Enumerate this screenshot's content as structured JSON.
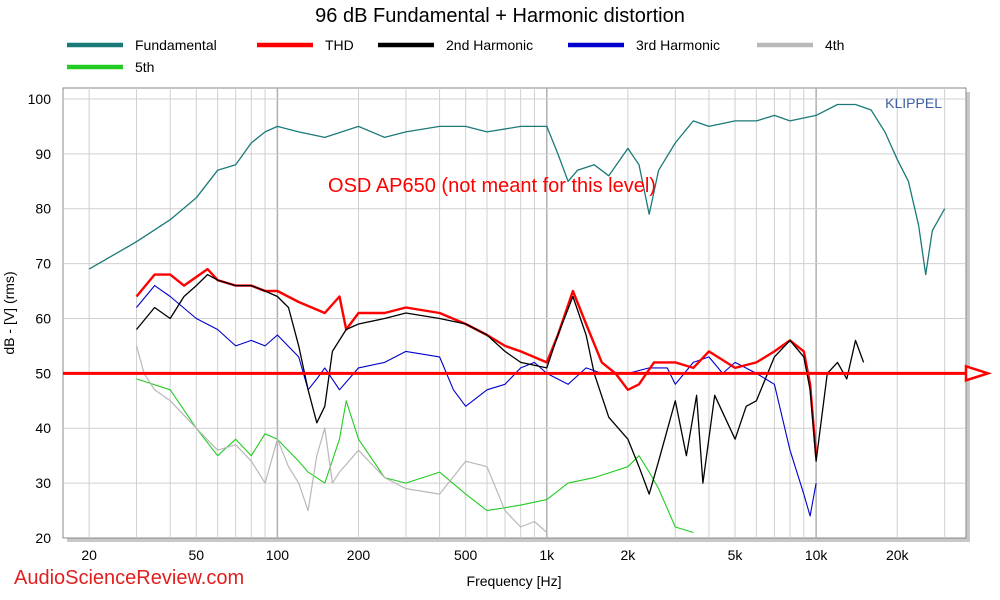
{
  "chart_data": {
    "type": "line",
    "title": "96 dB Fundamental + Harmonic distortion",
    "xlabel": "Frequency [Hz]",
    "ylabel": "dB - [V]  (rms)",
    "xscale": "log",
    "xlim": [
      16,
      36000
    ],
    "ylim": [
      20,
      102
    ],
    "x_ticks": [
      {
        "value": 20,
        "label": "20"
      },
      {
        "value": 50,
        "label": "50"
      },
      {
        "value": 100,
        "label": "100"
      },
      {
        "value": 200,
        "label": "200"
      },
      {
        "value": 500,
        "label": "500"
      },
      {
        "value": 1000,
        "label": "1k"
      },
      {
        "value": 2000,
        "label": "2k"
      },
      {
        "value": 5000,
        "label": "5k"
      },
      {
        "value": 10000,
        "label": "10k"
      },
      {
        "value": 20000,
        "label": "20k"
      }
    ],
    "y_ticks": [
      20,
      30,
      40,
      50,
      60,
      70,
      80,
      90,
      100
    ],
    "grid": true,
    "legend_position": "top",
    "annotations": {
      "callout": "OSD AP650 (not meant for this level)",
      "callout_color": "#ff0000",
      "reference_line_y": 50,
      "reference_line_color": "#ff0000",
      "brand": "KLIPPEL",
      "brand_color": "#3b5fa0",
      "watermark": "AudioScienceReview.com",
      "watermark_color": "#e02020"
    },
    "series": [
      {
        "name": "Fundamental",
        "color": "#1a7a78",
        "width": 1.3,
        "points": [
          [
            20,
            69
          ],
          [
            30,
            74
          ],
          [
            40,
            78
          ],
          [
            50,
            82
          ],
          [
            60,
            87
          ],
          [
            70,
            88
          ],
          [
            80,
            92
          ],
          [
            90,
            94
          ],
          [
            100,
            95
          ],
          [
            120,
            94
          ],
          [
            150,
            93
          ],
          [
            200,
            95
          ],
          [
            250,
            93
          ],
          [
            300,
            94
          ],
          [
            400,
            95
          ],
          [
            500,
            95
          ],
          [
            600,
            94
          ],
          [
            800,
            95
          ],
          [
            1000,
            95
          ],
          [
            1100,
            90
          ],
          [
            1200,
            85
          ],
          [
            1300,
            87
          ],
          [
            1500,
            88
          ],
          [
            1700,
            86
          ],
          [
            2000,
            91
          ],
          [
            2200,
            88
          ],
          [
            2400,
            79
          ],
          [
            2600,
            87
          ],
          [
            3000,
            92
          ],
          [
            3500,
            96
          ],
          [
            4000,
            95
          ],
          [
            5000,
            96
          ],
          [
            6000,
            96
          ],
          [
            7000,
            97
          ],
          [
            8000,
            96
          ],
          [
            10000,
            97
          ],
          [
            12000,
            99
          ],
          [
            14000,
            99
          ],
          [
            16000,
            98
          ],
          [
            18000,
            94
          ],
          [
            20000,
            89
          ],
          [
            22000,
            85
          ],
          [
            24000,
            77
          ],
          [
            25500,
            68
          ],
          [
            27000,
            76
          ],
          [
            30000,
            80
          ]
        ]
      },
      {
        "name": "THD",
        "color": "#ff0000",
        "width": 2.4,
        "points": [
          [
            30,
            64
          ],
          [
            35,
            68
          ],
          [
            40,
            68
          ],
          [
            45,
            66
          ],
          [
            55,
            69
          ],
          [
            60,
            67
          ],
          [
            70,
            66
          ],
          [
            80,
            66
          ],
          [
            90,
            65
          ],
          [
            100,
            65
          ],
          [
            120,
            63
          ],
          [
            150,
            61
          ],
          [
            170,
            64
          ],
          [
            180,
            58
          ],
          [
            200,
            61
          ],
          [
            250,
            61
          ],
          [
            300,
            62
          ],
          [
            400,
            61
          ],
          [
            500,
            59
          ],
          [
            600,
            57
          ],
          [
            700,
            55
          ],
          [
            800,
            54
          ],
          [
            1000,
            52
          ],
          [
            1100,
            57
          ],
          [
            1250,
            65
          ],
          [
            1400,
            59
          ],
          [
            1600,
            52
          ],
          [
            1800,
            50
          ],
          [
            2000,
            47
          ],
          [
            2200,
            48
          ],
          [
            2500,
            52
          ],
          [
            3000,
            52
          ],
          [
            3500,
            51
          ],
          [
            4000,
            54
          ],
          [
            5000,
            51
          ],
          [
            6000,
            52
          ],
          [
            7000,
            54
          ],
          [
            8000,
            56
          ],
          [
            9000,
            54
          ],
          [
            9500,
            48
          ],
          [
            10000,
            35
          ]
        ]
      },
      {
        "name": "2nd Harmonic",
        "color": "#000000",
        "width": 1.3,
        "points": [
          [
            30,
            58
          ],
          [
            35,
            62
          ],
          [
            40,
            60
          ],
          [
            45,
            64
          ],
          [
            50,
            66
          ],
          [
            55,
            68
          ],
          [
            60,
            67
          ],
          [
            70,
            66
          ],
          [
            80,
            66
          ],
          [
            90,
            65
          ],
          [
            100,
            64
          ],
          [
            110,
            62
          ],
          [
            120,
            55
          ],
          [
            130,
            47
          ],
          [
            140,
            41
          ],
          [
            150,
            44
          ],
          [
            160,
            54
          ],
          [
            180,
            58
          ],
          [
            200,
            59
          ],
          [
            250,
            60
          ],
          [
            300,
            61
          ],
          [
            400,
            60
          ],
          [
            500,
            59
          ],
          [
            600,
            57
          ],
          [
            700,
            54
          ],
          [
            800,
            52
          ],
          [
            1000,
            51
          ],
          [
            1100,
            57
          ],
          [
            1250,
            64
          ],
          [
            1400,
            57
          ],
          [
            1500,
            50
          ],
          [
            1700,
            42
          ],
          [
            2000,
            38
          ],
          [
            2200,
            33
          ],
          [
            2400,
            28
          ],
          [
            2600,
            34
          ],
          [
            3000,
            45
          ],
          [
            3300,
            35
          ],
          [
            3600,
            46
          ],
          [
            3800,
            30
          ],
          [
            4200,
            46
          ],
          [
            5000,
            38
          ],
          [
            5500,
            44
          ],
          [
            6000,
            45
          ],
          [
            7000,
            53
          ],
          [
            8000,
            56
          ],
          [
            9000,
            53
          ],
          [
            9500,
            47
          ],
          [
            10000,
            34
          ],
          [
            11000,
            50
          ],
          [
            12000,
            52
          ],
          [
            13000,
            49
          ],
          [
            14000,
            56
          ],
          [
            15000,
            52
          ]
        ]
      },
      {
        "name": "3rd Harmonic",
        "color": "#0000cc",
        "width": 1.1,
        "points": [
          [
            30,
            62
          ],
          [
            35,
            66
          ],
          [
            40,
            64
          ],
          [
            50,
            60
          ],
          [
            60,
            58
          ],
          [
            70,
            55
          ],
          [
            80,
            56
          ],
          [
            90,
            55
          ],
          [
            100,
            57
          ],
          [
            120,
            53
          ],
          [
            130,
            47
          ],
          [
            140,
            49
          ],
          [
            150,
            51
          ],
          [
            170,
            47
          ],
          [
            200,
            51
          ],
          [
            250,
            52
          ],
          [
            300,
            54
          ],
          [
            400,
            53
          ],
          [
            450,
            47
          ],
          [
            500,
            44
          ],
          [
            600,
            47
          ],
          [
            700,
            48
          ],
          [
            800,
            51
          ],
          [
            900,
            52
          ],
          [
            1000,
            50
          ],
          [
            1200,
            48
          ],
          [
            1400,
            51
          ],
          [
            1600,
            50
          ],
          [
            2000,
            50
          ],
          [
            2400,
            51
          ],
          [
            2800,
            51
          ],
          [
            3000,
            48
          ],
          [
            3500,
            52
          ],
          [
            4000,
            53
          ],
          [
            4500,
            50
          ],
          [
            5000,
            52
          ],
          [
            6000,
            50
          ],
          [
            7000,
            48
          ],
          [
            8000,
            36
          ],
          [
            9000,
            28
          ],
          [
            9500,
            24
          ],
          [
            10000,
            30
          ]
        ]
      },
      {
        "name": "4th",
        "color": "#b8b8b8",
        "width": 1.2,
        "points": [
          [
            30,
            55
          ],
          [
            32,
            50
          ],
          [
            35,
            47
          ],
          [
            40,
            45
          ],
          [
            50,
            40
          ],
          [
            60,
            36
          ],
          [
            70,
            37
          ],
          [
            80,
            34
          ],
          [
            90,
            30
          ],
          [
            100,
            38
          ],
          [
            110,
            33
          ],
          [
            120,
            30
          ],
          [
            130,
            25
          ],
          [
            140,
            35
          ],
          [
            150,
            40
          ],
          [
            160,
            30
          ],
          [
            170,
            32
          ],
          [
            200,
            36
          ],
          [
            250,
            31
          ],
          [
            300,
            29
          ],
          [
            400,
            28
          ],
          [
            500,
            34
          ],
          [
            600,
            33
          ],
          [
            700,
            25
          ],
          [
            800,
            22
          ],
          [
            900,
            23
          ],
          [
            1000,
            21
          ]
        ]
      },
      {
        "name": "5th",
        "color": "#22cc22",
        "width": 1.1,
        "points": [
          [
            30,
            49
          ],
          [
            40,
            47
          ],
          [
            50,
            40
          ],
          [
            60,
            35
          ],
          [
            70,
            38
          ],
          [
            80,
            35
          ],
          [
            90,
            39
          ],
          [
            100,
            38
          ],
          [
            120,
            34
          ],
          [
            130,
            32
          ],
          [
            150,
            30
          ],
          [
            170,
            38
          ],
          [
            180,
            45
          ],
          [
            200,
            38
          ],
          [
            250,
            31
          ],
          [
            300,
            30
          ],
          [
            400,
            32
          ],
          [
            500,
            28
          ],
          [
            600,
            25
          ],
          [
            800,
            26
          ],
          [
            1000,
            27
          ],
          [
            1200,
            30
          ],
          [
            1500,
            31
          ],
          [
            2000,
            33
          ],
          [
            2200,
            35
          ],
          [
            2400,
            32
          ],
          [
            2600,
            29
          ],
          [
            3000,
            22
          ],
          [
            3500,
            21
          ]
        ]
      }
    ]
  }
}
